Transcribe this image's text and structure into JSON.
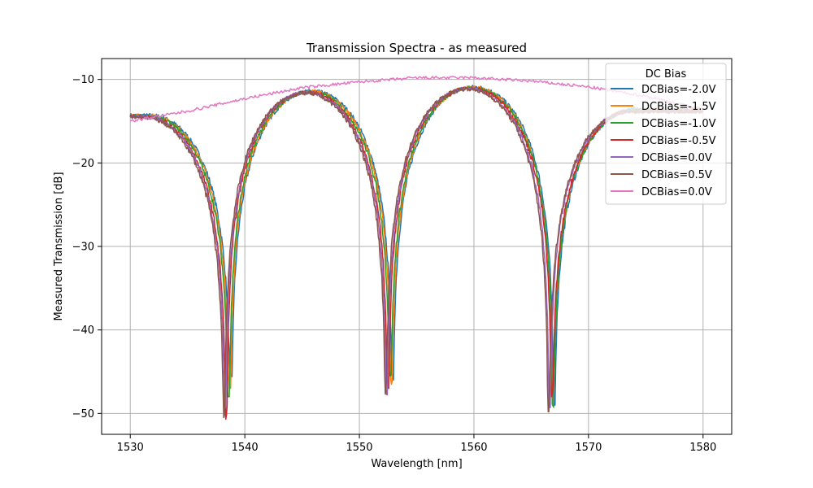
{
  "chart_data": {
    "type": "line",
    "title": "Transmission Spectra - as measured",
    "xlabel": "Wavelength [nm]",
    "ylabel": "Measured Transmission [dB]",
    "xlim": [
      1527.5,
      1582.5
    ],
    "ylim": [
      -52.5,
      -7.5
    ],
    "xticks": [
      1530,
      1540,
      1550,
      1560,
      1570,
      1580
    ],
    "xtick_labels": [
      "1530",
      "1540",
      "1550",
      "1560",
      "1570",
      "1580"
    ],
    "yticks": [
      -50,
      -40,
      -30,
      -20,
      -10
    ],
    "ytick_labels": [
      "−50",
      "−40",
      "−30",
      "−20",
      "−10"
    ],
    "grid": true,
    "legend": {
      "title": "DC Bias",
      "placement": "top-right"
    },
    "series": [
      {
        "name": "DCBias=-2.0V",
        "color": "#1f77b4",
        "dips": [
          {
            "x": 1538.8,
            "y": -46
          },
          {
            "x": 1552.9,
            "y": -46
          },
          {
            "x": 1567.0,
            "y": -49
          }
        ]
      },
      {
        "name": "DCBias=-1.5V",
        "color": "#ff7f0e",
        "dips": [
          {
            "x": 1538.7,
            "y": -47
          },
          {
            "x": 1552.8,
            "y": -46.5
          },
          {
            "x": 1566.9,
            "y": -48.5
          }
        ]
      },
      {
        "name": "DCBias=-1.0V",
        "color": "#2ca02c",
        "dips": [
          {
            "x": 1538.6,
            "y": -48
          },
          {
            "x": 1552.7,
            "y": -45.5
          },
          {
            "x": 1566.9,
            "y": -49.3
          }
        ]
      },
      {
        "name": "DCBias=-0.5V",
        "color": "#d62728",
        "dips": [
          {
            "x": 1538.4,
            "y": -50.7
          },
          {
            "x": 1552.5,
            "y": -47
          },
          {
            "x": 1566.8,
            "y": -48
          }
        ]
      },
      {
        "name": "DCBias=0.0V",
        "color": "#9467bd",
        "dips": [
          {
            "x": 1538.3,
            "y": -49.5
          },
          {
            "x": 1552.4,
            "y": -48
          },
          {
            "x": 1566.6,
            "y": -49.5
          }
        ]
      },
      {
        "name": "DCBias=0.5V",
        "color": "#8c564b",
        "dips": [
          {
            "x": 1538.2,
            "y": -50.5
          },
          {
            "x": 1552.3,
            "y": -48.3
          },
          {
            "x": 1566.5,
            "y": -49.8
          }
        ]
      },
      {
        "name": "DCBias=0.0V",
        "color": "#e377c2",
        "flat": true,
        "x": [
          1530,
          1535,
          1540,
          1545,
          1550,
          1555,
          1560,
          1565,
          1570,
          1575,
          1580
        ],
        "y": [
          -15.0,
          -13.8,
          -12.3,
          -11.0,
          -10.3,
          -9.8,
          -9.8,
          -10.2,
          -10.9,
          -12.0,
          -13.6
        ]
      }
    ]
  }
}
